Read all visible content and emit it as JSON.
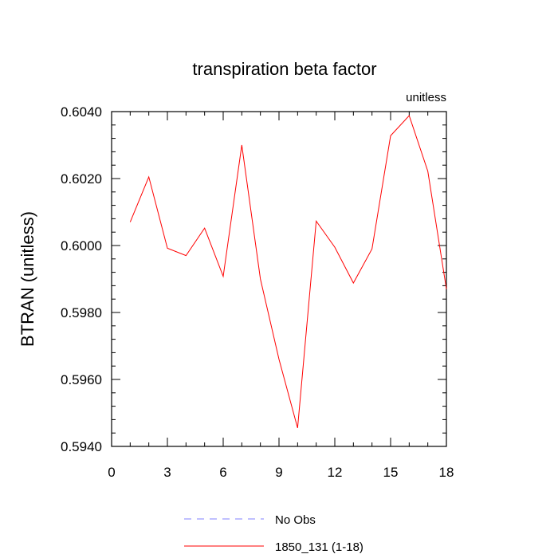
{
  "chart_data": {
    "type": "line",
    "title": "transpiration beta factor",
    "units_label": "unitless",
    "ylabel": "BTRAN  (unitless)",
    "xlabel": "",
    "xlim": [
      0,
      18
    ],
    "ylim": [
      0.594,
      0.604
    ],
    "x_ticks": [
      0,
      3,
      6,
      9,
      12,
      15,
      18
    ],
    "y_ticks": [
      "0.5940",
      "0.5960",
      "0.5980",
      "0.6000",
      "0.6020",
      "0.6040"
    ],
    "y_tick_values": [
      0.594,
      0.596,
      0.598,
      0.6,
      0.602,
      0.604
    ],
    "grid": false,
    "legend_position": "bottom-center",
    "series": [
      {
        "name": "No Obs",
        "color": "#8080ff",
        "style": "dashed",
        "x": [],
        "values": []
      },
      {
        "name": "1850_131 (1-18)",
        "color": "#ff0000",
        "style": "solid",
        "x": [
          1,
          2,
          3,
          4,
          5,
          6,
          7,
          8,
          9,
          10,
          11,
          12,
          13,
          14,
          15,
          16,
          17,
          18
        ],
        "values": [
          0.6007,
          0.60205,
          0.59992,
          0.5997,
          0.60052,
          0.59908,
          0.603,
          0.599,
          0.5966,
          0.59455,
          0.60073,
          0.59995,
          0.59888,
          0.5999,
          0.60328,
          0.60388,
          0.60222,
          0.5987
        ]
      }
    ]
  }
}
